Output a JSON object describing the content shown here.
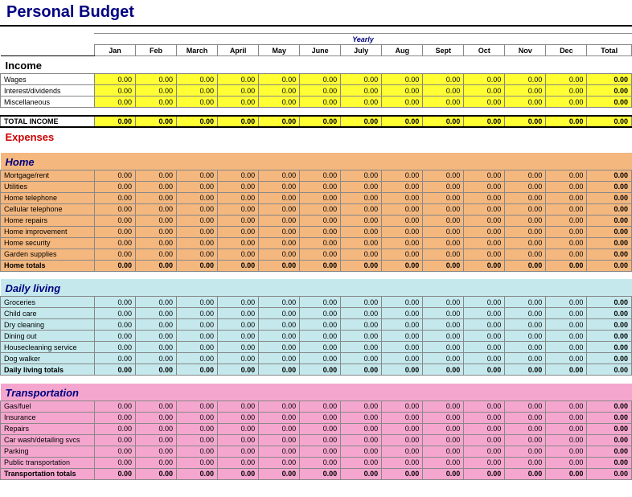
{
  "title": "Personal Budget",
  "yearly_label": "Yearly",
  "months": [
    "Jan",
    "Feb",
    "March",
    "April",
    "May",
    "June",
    "July",
    "Aug",
    "Sept",
    "Oct",
    "Nov",
    "Dec"
  ],
  "total_label": "Total",
  "zero": "0.00",
  "income": {
    "title": "Income",
    "rows": [
      "Wages",
      "Interest/dividends",
      "Miscellaneous"
    ],
    "total_label": "TOTAL INCOME",
    "bg": "#ffff33"
  },
  "expenses": {
    "title": "Expenses"
  },
  "home": {
    "title": "Home",
    "rows": [
      "Mortgage/rent",
      "Utilities",
      "Home telephone",
      "Cellular telephone",
      "Home repairs",
      "Home improvement",
      "Home security",
      "Garden supplies"
    ],
    "total_label": "Home totals",
    "bg": "#f4b77e"
  },
  "daily": {
    "title": "Daily living",
    "rows": [
      "Groceries",
      "Child care",
      "Dry cleaning",
      "Dining out",
      "Housecleaning service",
      "Dog walker"
    ],
    "total_label": "Daily living totals",
    "bg": "#c4e8ec"
  },
  "transport": {
    "title": "Transportation",
    "rows": [
      "Gas/fuel",
      "Insurance",
      "Repairs",
      "Car wash/detailing svcs",
      "Parking",
      "Public transportation"
    ],
    "total_label": "Transportation totals",
    "bg": "#f5a6ce"
  },
  "colors": {
    "title_color": "#000080",
    "expenses_color": "#cc0000",
    "section_color": "#000080",
    "border": "#888888"
  }
}
